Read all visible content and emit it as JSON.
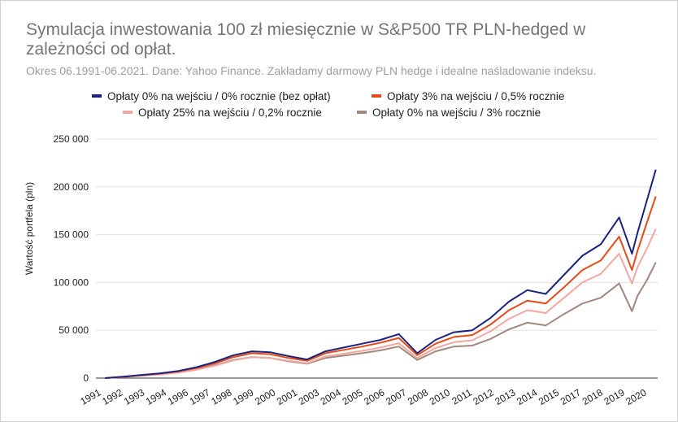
{
  "title": "Symulacja inwestowania 100 zł miesięcznie w S&P500 TR PLN-hedged w zależności od opłat.",
  "subtitle": "Okres 06.1991-06.2021. Dane: Yahoo Finance. Zakładamy darmowy PLN hedge i idealne naśladowanie indeksu.",
  "chart_data": {
    "type": "line",
    "title": "Symulacja inwestowania 100 zł miesięcznie w S&P500 TR PLN-hedged w zależności od opłat.",
    "subtitle": "Okres 06.1991-06.2021. Dane: Yahoo Finance. Zakładamy darmowy PLN hedge i idealne naśladowanie indeksu.",
    "xlabel": "",
    "ylabel": "Wartość portfela (pln)",
    "x_tick_labels": [
      "1991",
      "1992",
      "1993",
      "1994",
      "1996",
      "1997",
      "1998",
      "1999",
      "2000",
      "2001",
      "2003",
      "2004",
      "2005",
      "2006",
      "2007",
      "2008",
      "2010",
      "2011",
      "2012",
      "2013",
      "2014",
      "2015",
      "2017",
      "2018",
      "2019",
      "2020"
    ],
    "y_ticks": [
      0,
      50000,
      100000,
      150000,
      200000,
      250000
    ],
    "y_tick_labels": [
      "0",
      "50 000",
      "100 000",
      "150 000",
      "200 000",
      "250 000"
    ],
    "ylim": [
      0,
      250000
    ],
    "x": [
      1991.5,
      1992.5,
      1993.5,
      1994.5,
      1995.5,
      1996.5,
      1997.5,
      1998.5,
      1999.5,
      2000.5,
      2001.5,
      2002.5,
      2003.5,
      2004.5,
      2005.5,
      2006.5,
      2007.5,
      2008.5,
      2009.5,
      2010.5,
      2011.5,
      2012.5,
      2013.5,
      2014.5,
      2015.5,
      2016.5,
      2017.5,
      2018.5,
      2019.5,
      2020.2,
      2020.5,
      2021.0,
      2021.5
    ],
    "series": [
      {
        "name": "Opłaty 0% na wejściu / 0% rocznie (bez opłat)",
        "color": "#1a237e",
        "values": [
          0,
          1500,
          3300,
          5000,
          7500,
          11500,
          17000,
          24000,
          28000,
          27000,
          23000,
          19500,
          28000,
          32000,
          36000,
          40000,
          46000,
          26000,
          40000,
          48000,
          50000,
          63000,
          80000,
          92000,
          88000,
          108000,
          128000,
          140000,
          168000,
          130000,
          152000,
          185000,
          218000
        ]
      },
      {
        "name": "Opłaty 3% na wejściu / 0,5% rocznie",
        "color": "#e64a19",
        "values": [
          0,
          1400,
          3100,
          4700,
          7000,
          10600,
          15500,
          22000,
          26000,
          25000,
          21000,
          18000,
          26000,
          29500,
          33000,
          37000,
          42000,
          24000,
          36000,
          43000,
          45000,
          56000,
          71000,
          81000,
          78000,
          95000,
          113000,
          123000,
          148000,
          113000,
          133000,
          162000,
          190000
        ]
      },
      {
        "name": "Opłaty 25% na wejściu / 0,2% rocznie",
        "color": "#f2a7a0",
        "values": [
          0,
          1100,
          2500,
          3800,
          5800,
          8800,
          13000,
          18500,
          22000,
          21000,
          18000,
          15500,
          22500,
          25500,
          28500,
          32000,
          36500,
          21000,
          31500,
          37500,
          39500,
          49000,
          62000,
          71000,
          68000,
          84000,
          100000,
          109000,
          130000,
          99000,
          116000,
          135000,
          156000
        ]
      },
      {
        "name": "Opłaty 0% na wejściu / 3% rocznie",
        "color": "#a1887f",
        "values": [
          0,
          1300,
          2800,
          4200,
          6200,
          9300,
          13500,
          19000,
          22000,
          21000,
          17500,
          15000,
          21000,
          23500,
          26000,
          29000,
          33000,
          19000,
          28000,
          33000,
          34000,
          41000,
          51000,
          58000,
          55000,
          67000,
          78000,
          84000,
          99000,
          70000,
          86000,
          102000,
          121000
        ]
      }
    ],
    "legend_position": "top",
    "grid": true
  }
}
